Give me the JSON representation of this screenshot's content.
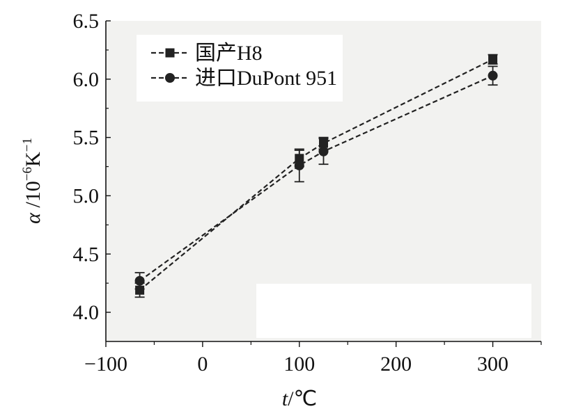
{
  "chart_data": {
    "type": "scatter",
    "xlabel": {
      "italic": "t",
      "rest": "/℃"
    },
    "ylabel": {
      "italic": "α",
      "rest": " /10",
      "sup1": "−6",
      "mid": "K",
      "sup2": "−1"
    },
    "xlim": [
      -100,
      350
    ],
    "ylim": [
      3.75,
      6.5
    ],
    "x_ticks": [
      -100,
      0,
      100,
      200,
      300
    ],
    "x_tick_labels": [
      "−100",
      "0",
      "100",
      "200",
      "300"
    ],
    "y_ticks": [
      4.0,
      4.5,
      5.0,
      5.5,
      6.0,
      6.5
    ],
    "y_tick_labels": [
      "4.0",
      "4.5",
      "5.0",
      "5.5",
      "6.0",
      "6.5"
    ],
    "grid": false,
    "legend_position": "top-left",
    "series": [
      {
        "name": "国产H8",
        "marker": "square",
        "line": "dashed",
        "color": "#222222",
        "points": [
          {
            "x": -65,
            "y": 4.19,
            "err": 0.06
          },
          {
            "x": 100,
            "y": 5.32,
            "err": 0.07
          },
          {
            "x": 125,
            "y": 5.45,
            "err": 0.05
          },
          {
            "x": 300,
            "y": 6.17,
            "err": 0.04
          }
        ]
      },
      {
        "name": "进口DuPont 951",
        "marker": "circle",
        "line": "dashed",
        "color": "#222222",
        "points": [
          {
            "x": -65,
            "y": 4.27,
            "err": 0.07
          },
          {
            "x": 100,
            "y": 5.26,
            "err": 0.14
          },
          {
            "x": 125,
            "y": 5.38,
            "err": 0.11
          },
          {
            "x": 300,
            "y": 6.03,
            "err": 0.08
          }
        ]
      }
    ],
    "plot_background": "#f2f2f0"
  }
}
